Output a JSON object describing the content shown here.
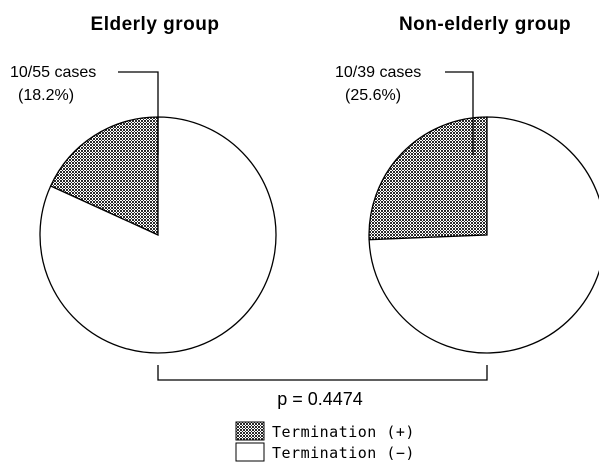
{
  "chart_data": [
    {
      "type": "pie",
      "title": "Elderly group",
      "categories": [
        "Termination (+)",
        "Termination (−)"
      ],
      "values": [
        10,
        45
      ],
      "percent": [
        18.2,
        81.8
      ],
      "annotation": {
        "line1": "10/55 cases",
        "line2": "(18.2%)"
      }
    },
    {
      "type": "pie",
      "title": "Non-elderly group",
      "categories": [
        "Termination (+)",
        "Termination (−)"
      ],
      "values": [
        10,
        29
      ],
      "percent": [
        25.6,
        74.4
      ],
      "annotation": {
        "line1": "10/39 cases",
        "line2": "(25.6%)"
      }
    }
  ],
  "comparison": {
    "p_value": "p = 0.4474"
  },
  "legend": {
    "position": "bottom-center",
    "items": [
      {
        "label": "Termination (+)",
        "fill": "hatched-dark"
      },
      {
        "label": "Termination (−)",
        "fill": "white"
      }
    ]
  },
  "colors": {
    "slice_plus": "#3a3a3a",
    "slice_minus": "#ffffff",
    "stroke": "#000000"
  }
}
